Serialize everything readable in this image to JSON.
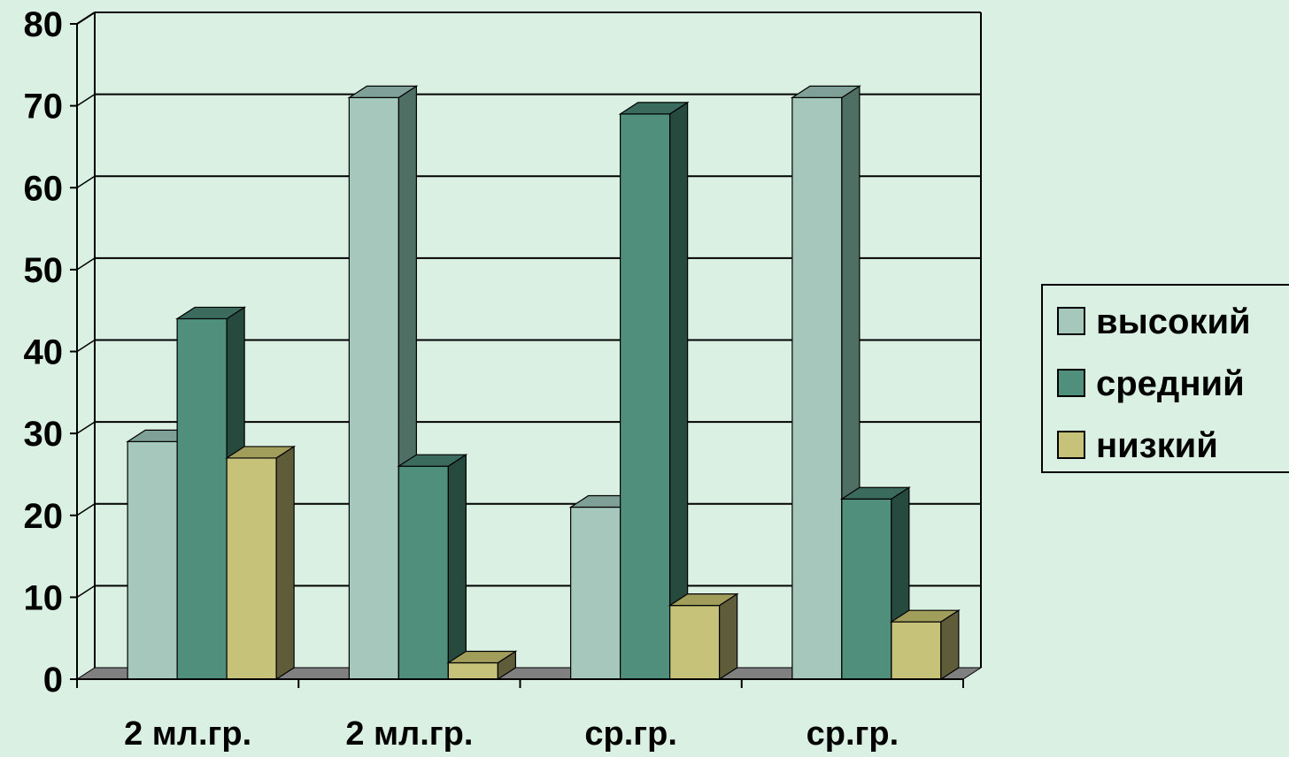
{
  "chart_data": {
    "type": "bar",
    "three_d": true,
    "categories": [
      "2 мл.гр.",
      "2 мл.гр.",
      "ср.гр.",
      "ср.гр."
    ],
    "series": [
      {
        "name": "высокий",
        "values": [
          29,
          71,
          21,
          71
        ]
      },
      {
        "name": "средний",
        "values": [
          44,
          26,
          69,
          22
        ]
      },
      {
        "name": "низкий",
        "values": [
          27,
          2,
          9,
          7
        ]
      }
    ],
    "y_ticks": [
      0,
      10,
      20,
      30,
      40,
      50,
      60,
      70,
      80
    ],
    "ylim": [
      0,
      80
    ],
    "grid": true,
    "legend_position": "right",
    "colors": {
      "background": "#d9f0e2",
      "series": [
        "#a6c8bc",
        "#4f8f7c",
        "#c6c27a"
      ],
      "series_side": [
        "#4f6e64",
        "#274a3f",
        "#5f5c3a"
      ],
      "series_top": [
        "#7fa096",
        "#3a6b5d",
        "#a19d5b"
      ],
      "floor": "#808080",
      "grid": "#000000"
    }
  }
}
